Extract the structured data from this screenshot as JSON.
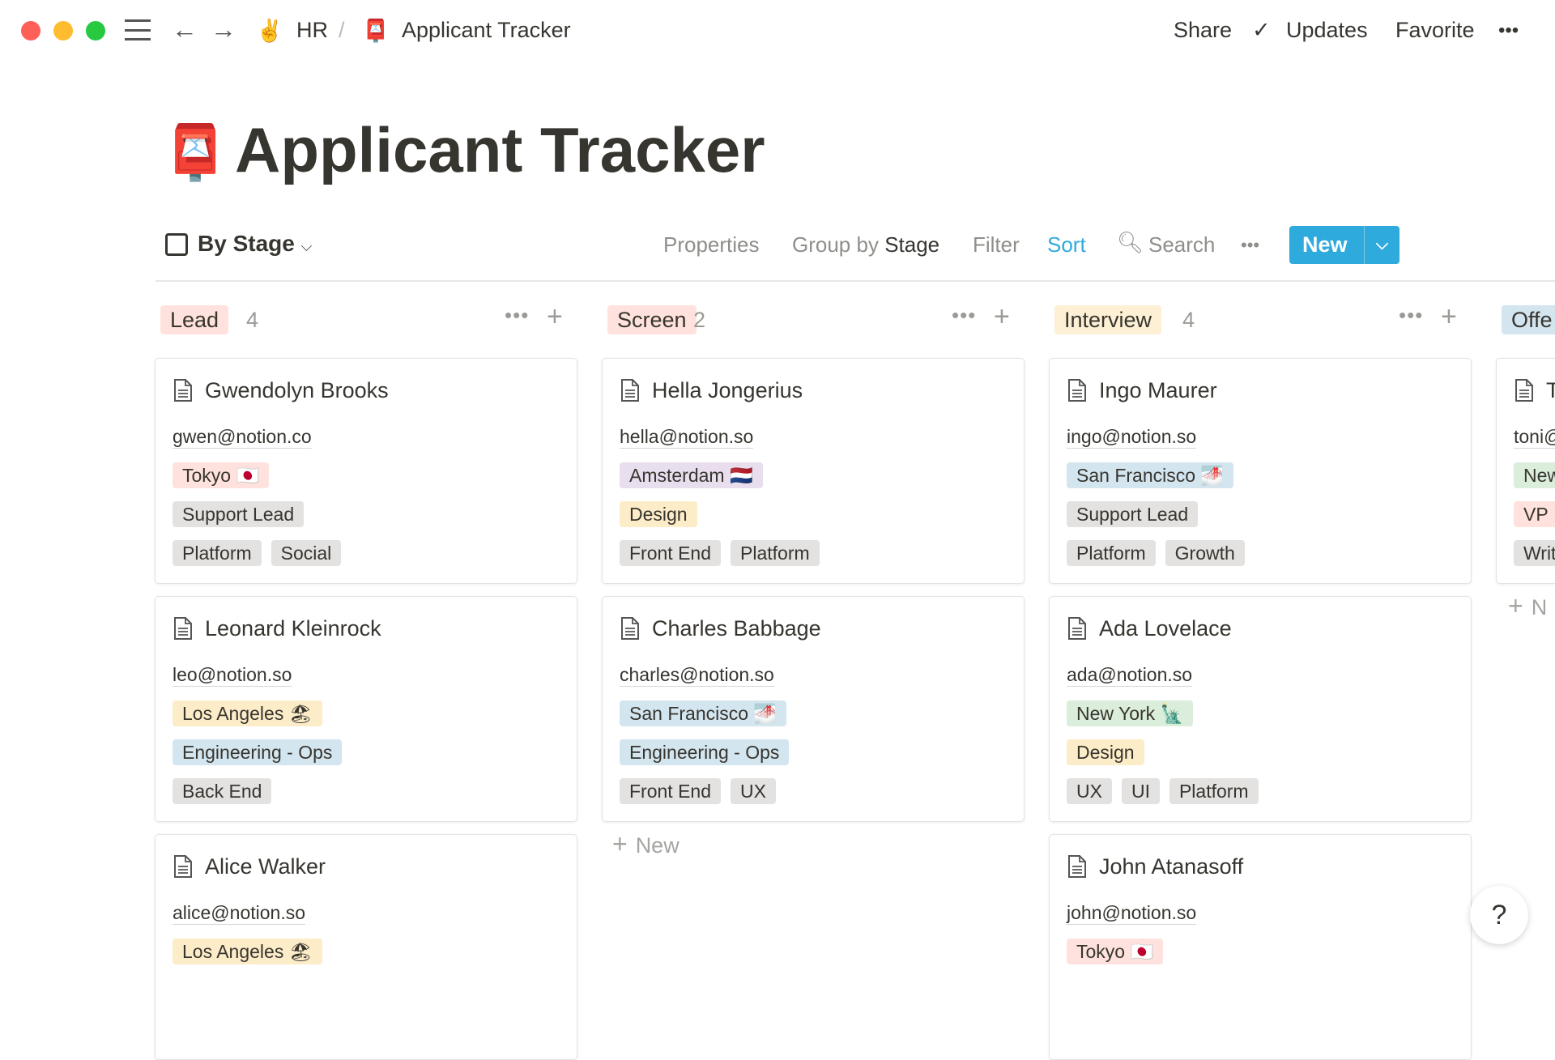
{
  "topbar": {
    "breadcrumb_parent": "HR",
    "breadcrumb_sep": "/",
    "breadcrumb_page": "Applicant Tracker",
    "share": "Share",
    "updates": "Updates",
    "favorite": "Favorite",
    "more": "•••"
  },
  "page": {
    "title": "Applicant Tracker",
    "icon": "postbox-icon"
  },
  "toolbar": {
    "view": "By Stage",
    "properties": "Properties",
    "group_by": "Group by",
    "group_by_value": "Stage",
    "filter": "Filter",
    "sort": "Sort",
    "search": "Search",
    "more": "•••",
    "new": "New",
    "accent": "#2eaadc"
  },
  "columns": [
    {
      "name": "Lead",
      "count": "4",
      "color": "#ffe2dd",
      "cards": [
        {
          "name": "Gwendolyn Brooks",
          "email": "gwen@notion.co",
          "rows": [
            [
              {
                "t": "Tokyo 🇯🇵",
                "c": "#ffe2dd"
              }
            ],
            [
              {
                "t": "Support Lead",
                "c": "#e3e2e0"
              }
            ],
            [
              {
                "t": "Platform",
                "c": "#e3e2e0"
              },
              {
                "t": "Social",
                "c": "#e3e2e0"
              }
            ]
          ]
        },
        {
          "name": "Leonard Kleinrock",
          "email": "leo@notion.so",
          "rows": [
            [
              {
                "t": "Los Angeles 🏖",
                "c": "#fdecc8"
              }
            ],
            [
              {
                "t": "Engineering - Ops",
                "c": "#d3e5ef"
              }
            ],
            [
              {
                "t": "Back End",
                "c": "#e3e2e0"
              }
            ]
          ]
        },
        {
          "name": "Alice Walker",
          "email": "alice@notion.so",
          "rows": [
            [
              {
                "t": "Los Angeles 🏖",
                "c": "#fdecc8"
              }
            ]
          ]
        }
      ]
    },
    {
      "name": "Screen",
      "count": "2",
      "color": "#ffe2dd",
      "new_label": "New",
      "cards": [
        {
          "name": "Hella Jongerius",
          "email": "hella@notion.so",
          "rows": [
            [
              {
                "t": "Amsterdam 🇳🇱",
                "c": "#e8deee"
              }
            ],
            [
              {
                "t": "Design",
                "c": "#fdecc8"
              }
            ],
            [
              {
                "t": "Front End",
                "c": "#e3e2e0"
              },
              {
                "t": "Platform",
                "c": "#e3e2e0"
              }
            ]
          ]
        },
        {
          "name": "Charles Babbage",
          "email": "charles@notion.so",
          "rows": [
            [
              {
                "t": "San Francisco 🌁",
                "c": "#d3e5ef"
              }
            ],
            [
              {
                "t": "Engineering - Ops",
                "c": "#d3e5ef"
              }
            ],
            [
              {
                "t": "Front End",
                "c": "#e3e2e0"
              },
              {
                "t": "UX",
                "c": "#e3e2e0"
              }
            ]
          ]
        }
      ]
    },
    {
      "name": "Interview",
      "count": "4",
      "color": "#fdf0d5",
      "cards": [
        {
          "name": "Ingo Maurer",
          "email": "ingo@notion.so",
          "rows": [
            [
              {
                "t": "San Francisco 🌁",
                "c": "#d3e5ef"
              }
            ],
            [
              {
                "t": "Support Lead",
                "c": "#e3e2e0"
              }
            ],
            [
              {
                "t": "Platform",
                "c": "#e3e2e0"
              },
              {
                "t": "Growth",
                "c": "#e3e2e0"
              }
            ]
          ]
        },
        {
          "name": "Ada Lovelace",
          "email": "ada@notion.so",
          "rows": [
            [
              {
                "t": "New York 🗽",
                "c": "#dbeddb"
              }
            ],
            [
              {
                "t": "Design",
                "c": "#fdecc8"
              }
            ],
            [
              {
                "t": "UX",
                "c": "#e3e2e0"
              },
              {
                "t": "UI",
                "c": "#e3e2e0"
              },
              {
                "t": "Platform",
                "c": "#e3e2e0"
              }
            ]
          ]
        },
        {
          "name": "John Atanasoff",
          "email": "john@notion.so",
          "rows": [
            [
              {
                "t": "Tokyo 🇯🇵",
                "c": "#ffe2dd"
              }
            ]
          ]
        }
      ]
    },
    {
      "name": "Offe",
      "count": "",
      "color": "#d3e5ef",
      "new_label": "N",
      "cards": [
        {
          "name": "T",
          "email": "toni@",
          "rows": [
            [
              {
                "t": "New",
                "c": "#dbeddb"
              }
            ],
            [
              {
                "t": "VP",
                "c": "#ffe2dd"
              }
            ],
            [
              {
                "t": "Writ",
                "c": "#e3e2e0"
              }
            ]
          ]
        }
      ]
    }
  ],
  "help": "?"
}
